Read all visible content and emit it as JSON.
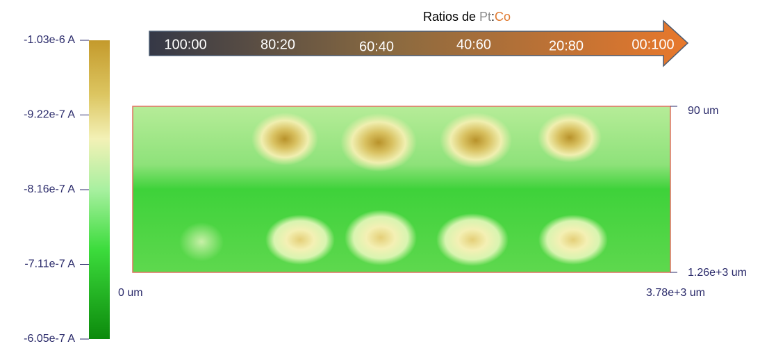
{
  "title": {
    "parts": [
      "Ratios de ",
      "Pt",
      ":",
      "Co"
    ]
  },
  "arrow_labels": [
    "100:00",
    "80:20",
    "60:40",
    "40:60",
    "20:80",
    "00:100"
  ],
  "colorbar": {
    "labels": [
      "-1.03e-6 A",
      "-9.22e-7 A",
      "-8.16e-7 A",
      "-7.11e-7 A",
      "-6.05e-7 A"
    ]
  },
  "map": {
    "x_labels": [
      "0 um",
      "3.78e+3 um"
    ],
    "y_labels": [
      "90 um",
      "1.26e+3 um"
    ]
  }
}
